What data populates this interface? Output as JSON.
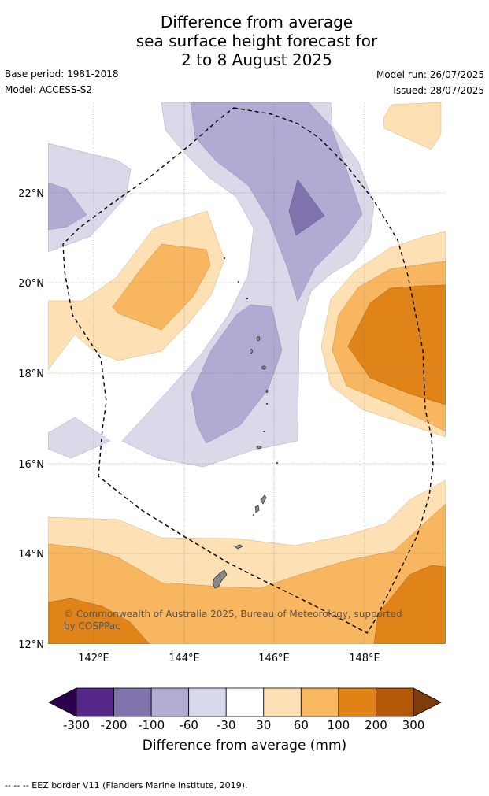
{
  "title": {
    "line1": "Difference from average",
    "line2": "sea surface height forecast for",
    "line3": "2 to 8 August 2025"
  },
  "meta": {
    "base_period": "Base period: 1981-2018",
    "model": "Model: ACCESS-S2",
    "model_run": "Model run: 26/07/2025",
    "issued": "Issued: 28/07/2025"
  },
  "map": {
    "lat_labels": [
      "22°N",
      "20°N",
      "18°N",
      "16°N",
      "14°N",
      "12°N"
    ],
    "lon_labels": [
      "142°E",
      "144°E",
      "146°E",
      "148°E"
    ],
    "copyright_line1": "© Commonwealth of Australia 2025, Bureau of Meteorology, supported",
    "copyright_line2": "by COSPPac",
    "colors": {
      "pos_30_60": "#fde0b4",
      "pos_60_100": "#f9b660",
      "pos_100_200": "#e08419",
      "neg_30_60": "#d9d9ea",
      "neg_60_100": "#b1abd3",
      "neg_100_200": "#8073ad",
      "land": "#888888",
      "eez": "#000000"
    }
  },
  "colorbar": {
    "ticks": [
      "-300",
      "-200",
      "-100",
      "-60",
      "-30",
      "30",
      "60",
      "100",
      "200",
      "300"
    ],
    "colors": [
      "#542788",
      "#8073ac",
      "#b2abd2",
      "#d8daeb",
      "#ffffff",
      "#fee0b6",
      "#f9b760",
      "#e08214",
      "#b35806"
    ],
    "under_color": "#2d004b",
    "over_color": "#7f3b08",
    "label": "Difference from average (mm)"
  },
  "footer": "--  --  -- EEZ border V11 (Flanders Marine Institute, 2019)."
}
